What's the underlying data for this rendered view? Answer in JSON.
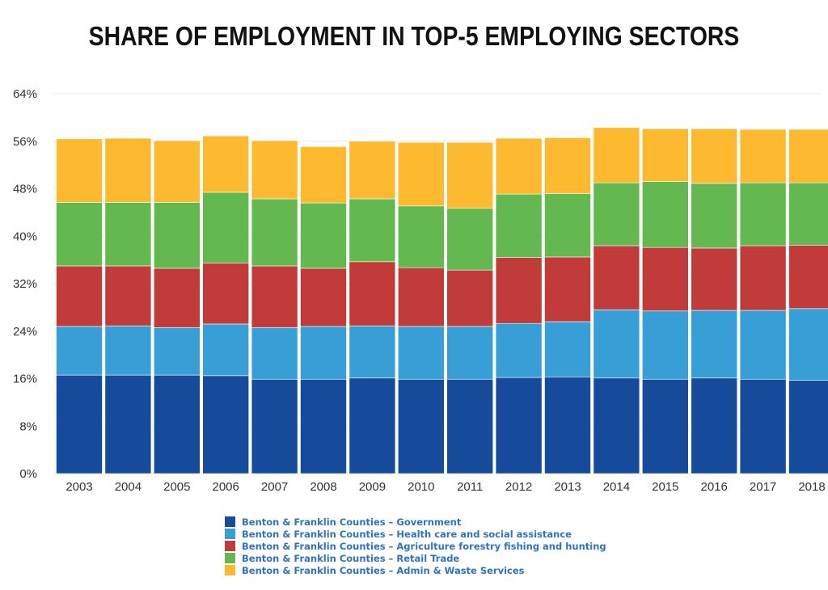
{
  "chart_data": {
    "type": "bar",
    "stacked": true,
    "title": "SHARE OF EMPLOYMENT IN TOP-5 EMPLOYING SECTORS",
    "xlabel": "",
    "ylabel": "",
    "ylim": [
      0,
      64
    ],
    "yticks": [
      0,
      8,
      16,
      24,
      32,
      40,
      48,
      56,
      64
    ],
    "ytick_labels": [
      "0%",
      "8%",
      "16%",
      "24%",
      "32%",
      "40%",
      "48%",
      "56%",
      "64%"
    ],
    "grid": true,
    "legend_position": "bottom-center",
    "categories": [
      "2003",
      "2004",
      "2005",
      "2006",
      "2007",
      "2008",
      "2009",
      "2010",
      "2011",
      "2012",
      "2013",
      "2014",
      "2015",
      "2016",
      "2017",
      "2018"
    ],
    "series": [
      {
        "name": "Benton & Franklin Counties – Government",
        "color": "#154b9a",
        "values": [
          16.6,
          16.6,
          16.6,
          16.5,
          15.9,
          15.9,
          16.1,
          15.9,
          15.9,
          16.2,
          16.3,
          16.1,
          15.9,
          16.1,
          15.9,
          15.7
        ]
      },
      {
        "name": "Benton & Franklin Counties – Health care and social assistance",
        "color": "#379fd5",
        "values": [
          8.2,
          8.3,
          8.0,
          8.7,
          8.7,
          8.9,
          8.8,
          8.9,
          8.9,
          9.1,
          9.3,
          11.5,
          11.5,
          11.4,
          11.6,
          12.1
        ]
      },
      {
        "name": "Benton & Franklin Counties – Agriculture forestry fishing and hunting",
        "color": "#c23b3b",
        "values": [
          10.2,
          10.1,
          10.0,
          10.3,
          10.4,
          9.8,
          10.8,
          9.9,
          9.5,
          11.1,
          10.9,
          10.8,
          10.7,
          10.5,
          10.9,
          10.7
        ]
      },
      {
        "name": "Benton & Franklin Counties – Retail Trade",
        "color": "#63b94f",
        "values": [
          10.7,
          10.7,
          11.1,
          11.9,
          11.3,
          11.0,
          10.6,
          10.4,
          10.4,
          10.7,
          10.7,
          10.6,
          11.1,
          10.9,
          10.6,
          10.5
        ]
      },
      {
        "name": "Benton & Franklin Counties – Admin & Waste Services",
        "color": "#fdb930",
        "values": [
          10.7,
          10.8,
          10.4,
          9.5,
          9.8,
          9.5,
          9.7,
          10.7,
          11.1,
          9.4,
          9.4,
          9.3,
          8.9,
          9.2,
          9.0,
          9.0
        ]
      }
    ]
  }
}
